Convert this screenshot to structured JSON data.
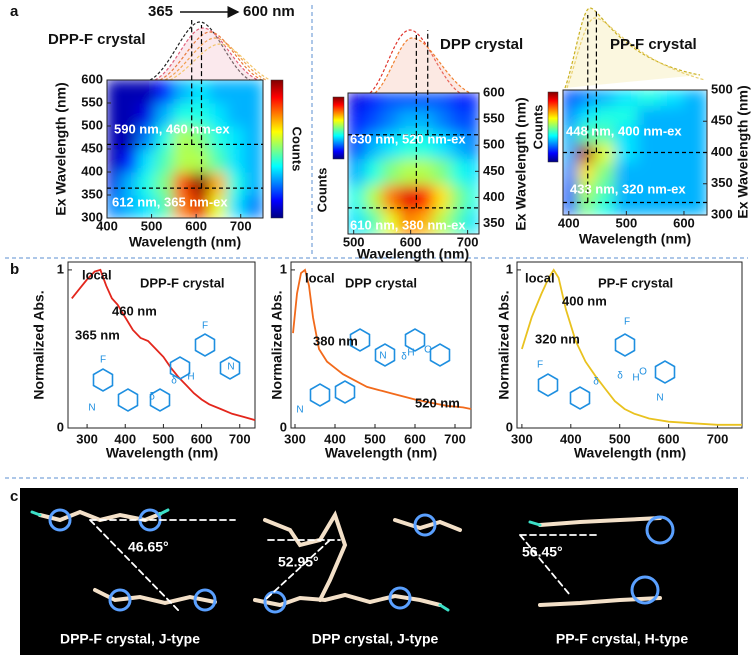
{
  "panel_labels": [
    "a",
    "b",
    "c"
  ],
  "excitation_range": {
    "start": "365",
    "end": "600 nm"
  },
  "chart_data": [
    {
      "type": "heatmap",
      "title": "DPP-F crystal",
      "x_label": "Wavelength (nm)",
      "y_label": "Ex Wavelength (nm)",
      "colorbar_label": "Counts",
      "colormap": "jet",
      "x": [
        410,
        450,
        490,
        530,
        570,
        610,
        650,
        690,
        730
      ],
      "y": [
        325,
        375,
        425,
        475,
        525,
        575
      ],
      "z": [
        [
          0.25,
          0.3,
          0.35,
          0.45,
          0.75,
          0.9,
          0.6,
          0.35,
          0.25
        ],
        [
          0.1,
          0.3,
          0.4,
          0.5,
          0.8,
          1.0,
          0.7,
          0.4,
          0.3
        ],
        [
          0.05,
          0.15,
          0.35,
          0.45,
          0.55,
          0.55,
          0.45,
          0.35,
          0.3
        ],
        [
          0.05,
          0.05,
          0.25,
          0.4,
          0.55,
          0.5,
          0.4,
          0.35,
          0.3
        ],
        [
          0.05,
          0.05,
          0.1,
          0.3,
          0.4,
          0.4,
          0.35,
          0.3,
          0.3
        ],
        [
          0.05,
          0.05,
          0.05,
          0.15,
          0.3,
          0.35,
          0.3,
          0.3,
          0.3
        ]
      ],
      "zlim": [
        0,
        1
      ],
      "xlim": [
        400,
        750
      ],
      "ylim": [
        300,
        600
      ],
      "xticks": [
        400,
        500,
        600,
        700
      ],
      "yticks": [
        300,
        350,
        400,
        450,
        500,
        550,
        600
      ],
      "peaks": [
        {
          "label": "590 nm, 460 nm-ex",
          "x": 590,
          "y": 460
        },
        {
          "label": "612 nm, 365 nm-ex",
          "x": 612,
          "y": 365
        }
      ]
    },
    {
      "type": "heatmap",
      "title": "DPP crystal",
      "x_label": "Wavelength (nm)",
      "y_label": "Ex Wavelength (nm)",
      "colorbar_label": "Counts",
      "colormap": "jet",
      "x": [
        505,
        535,
        565,
        595,
        625,
        655,
        685,
        712
      ],
      "y": [
        350,
        400,
        450,
        500,
        550,
        590
      ],
      "z": [
        [
          0.35,
          0.45,
          0.6,
          0.75,
          0.7,
          0.55,
          0.45,
          0.35
        ],
        [
          0.4,
          0.55,
          0.75,
          0.9,
          0.85,
          0.65,
          0.5,
          0.4
        ],
        [
          0.3,
          0.4,
          0.5,
          0.55,
          0.55,
          0.5,
          0.4,
          0.35
        ],
        [
          0.2,
          0.3,
          0.35,
          0.4,
          0.4,
          0.35,
          0.3,
          0.25
        ],
        [
          0.15,
          0.2,
          0.25,
          0.3,
          0.3,
          0.25,
          0.2,
          0.2
        ],
        [
          0.1,
          0.15,
          0.2,
          0.2,
          0.2,
          0.2,
          0.15,
          0.15
        ]
      ],
      "zlim": [
        0,
        1
      ],
      "xlim": [
        490,
        720
      ],
      "ylim": [
        330,
        600
      ],
      "xticks": [
        500,
        600,
        700
      ],
      "yticks": [
        350,
        400,
        450,
        500,
        550,
        600
      ],
      "peaks": [
        {
          "label": "630 nm, 520 nm-ex",
          "x": 630,
          "y": 520
        },
        {
          "label": "610 nm, 380 nm-ex",
          "x": 610,
          "y": 380
        }
      ]
    },
    {
      "type": "heatmap",
      "title": "PP-F crystal",
      "x_label": "Wavelength (nm)",
      "y_label": "Ex Wavelength (nm)",
      "colorbar_label": "Counts",
      "colormap": "jet",
      "x": [
        400,
        430,
        460,
        500,
        540,
        580,
        620
      ],
      "y": [
        310,
        340,
        370,
        400,
        430,
        460,
        490
      ],
      "z": [
        [
          0.2,
          0.5,
          0.4,
          0.3,
          0.3,
          0.3,
          0.3
        ],
        [
          0.2,
          0.55,
          0.45,
          0.3,
          0.3,
          0.3,
          0.3
        ],
        [
          0.25,
          0.65,
          0.5,
          0.3,
          0.3,
          0.3,
          0.3
        ],
        [
          0.3,
          0.95,
          0.6,
          0.35,
          0.3,
          0.3,
          0.3
        ],
        [
          0.3,
          0.45,
          0.45,
          0.35,
          0.3,
          0.3,
          0.3
        ],
        [
          0.25,
          0.35,
          0.4,
          0.4,
          0.3,
          0.3,
          0.3
        ],
        [
          0.2,
          0.25,
          0.3,
          0.35,
          0.4,
          0.35,
          0.3
        ]
      ],
      "zlim": [
        0,
        1
      ],
      "xlim": [
        390,
        640
      ],
      "ylim": [
        300,
        500
      ],
      "xticks": [
        400,
        500,
        600
      ],
      "yticks": [
        300,
        350,
        400,
        450,
        500
      ],
      "peaks": [
        {
          "label": "448 nm, 400 nm-ex",
          "x": 448,
          "y": 400
        },
        {
          "label": "433 nm, 320 nm-ex",
          "x": 433,
          "y": 320
        }
      ]
    },
    {
      "type": "line",
      "title": "DPP-F crystal",
      "x_label": "Wavelength (nm)",
      "y_label": "Normalized Abs.",
      "color": "#e3261c",
      "x": [
        260,
        280,
        300,
        320,
        335,
        350,
        365,
        380,
        400,
        420,
        440,
        460,
        480,
        500,
        520,
        540,
        560,
        580,
        600,
        620,
        650,
        680,
        710,
        740
      ],
      "values": [
        0.82,
        0.88,
        0.94,
        0.99,
        1.0,
        0.9,
        0.82,
        0.78,
        0.7,
        0.62,
        0.57,
        0.55,
        0.5,
        0.45,
        0.38,
        0.32,
        0.27,
        0.22,
        0.18,
        0.15,
        0.12,
        0.09,
        0.07,
        0.05
      ],
      "xlim": [
        250,
        740
      ],
      "ylim": [
        0,
        1.05
      ],
      "xticks": [
        300,
        400,
        500,
        600,
        700
      ],
      "yticks": [
        0,
        1
      ],
      "annotations": [
        "local",
        "460 nm",
        "365 nm"
      ],
      "molecule_labels": [
        "F",
        "N",
        "δ",
        "H",
        "F",
        "N",
        "δ"
      ]
    },
    {
      "type": "line",
      "title": "DPP crystal",
      "x_label": "Wavelength (nm)",
      "y_label": "Normalized Abs.",
      "color": "#f26a1b",
      "x": [
        295,
        305,
        315,
        325,
        335,
        345,
        360,
        380,
        400,
        420,
        450,
        480,
        510,
        540,
        570,
        600,
        640,
        680,
        720,
        740
      ],
      "values": [
        0.6,
        0.85,
        0.98,
        1.0,
        0.9,
        0.7,
        0.5,
        0.42,
        0.38,
        0.34,
        0.3,
        0.26,
        0.24,
        0.22,
        0.2,
        0.18,
        0.16,
        0.14,
        0.13,
        0.12
      ],
      "xlim": [
        290,
        740
      ],
      "ylim": [
        0,
        1.05
      ],
      "xticks": [
        300,
        400,
        500,
        600,
        700
      ],
      "yticks": [
        0,
        1
      ],
      "annotations": [
        "local",
        "380 nm",
        "520 nm"
      ],
      "molecule_labels": [
        "N",
        "δ",
        "H",
        "O",
        "N"
      ]
    },
    {
      "type": "line",
      "title": "PP-F crystal",
      "x_label": "Wavelength (nm)",
      "y_label": "Normalized Abs.",
      "color": "#e9c21f",
      "x": [
        300,
        320,
        340,
        355,
        365,
        375,
        390,
        410,
        430,
        450,
        470,
        490,
        510,
        530,
        560,
        600,
        650,
        700,
        750
      ],
      "values": [
        0.5,
        0.7,
        0.85,
        0.95,
        1.0,
        0.95,
        0.75,
        0.55,
        0.42,
        0.33,
        0.25,
        0.17,
        0.12,
        0.09,
        0.06,
        0.04,
        0.03,
        0.02,
        0.02
      ],
      "xlim": [
        290,
        750
      ],
      "ylim": [
        0,
        1.05
      ],
      "xticks": [
        300,
        400,
        500,
        600,
        700
      ],
      "yticks": [
        0,
        1
      ],
      "annotations": [
        "local",
        "400 nm",
        "320 nm"
      ],
      "molecule_labels": [
        "F",
        "O",
        "H",
        "δ",
        "N",
        "F",
        "δ"
      ]
    }
  ],
  "panel_c": {
    "structures": [
      {
        "angle": "46.65°",
        "caption": "DPP-F crystal, J-type"
      },
      {
        "angle": "52.95°",
        "caption": "DPP crystal, J-type"
      },
      {
        "angle": "56.45°",
        "caption": "PP-F crystal, H-type"
      }
    ]
  }
}
